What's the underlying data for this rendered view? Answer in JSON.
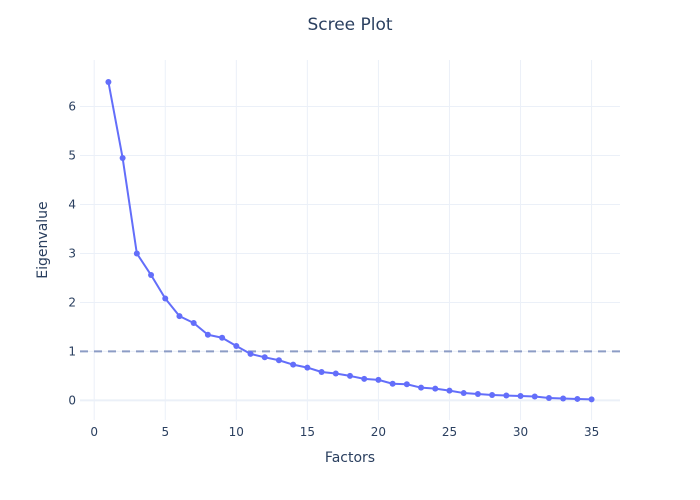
{
  "chart_data": {
    "type": "line",
    "title": "Scree Plot",
    "xlabel": "Factors",
    "ylabel": "Eigenvalue",
    "xlim": [
      -1,
      37
    ],
    "ylim": [
      -0.4,
      6.95
    ],
    "x_ticks": [
      0,
      5,
      10,
      15,
      20,
      25,
      30,
      35
    ],
    "y_ticks": [
      0,
      1,
      2,
      3,
      4,
      5,
      6
    ],
    "grid": true,
    "series": [
      {
        "x": [
          1,
          2,
          3,
          4,
          5,
          6,
          7,
          8,
          9,
          10,
          11,
          12,
          13,
          14,
          15,
          16,
          17,
          18,
          19,
          20,
          21,
          22,
          23,
          24,
          25,
          26,
          27,
          28,
          29,
          30,
          31,
          32,
          33,
          34,
          35
        ],
        "values": [
          6.5,
          4.95,
          3.0,
          2.56,
          2.08,
          1.72,
          1.58,
          1.34,
          1.28,
          1.11,
          0.95,
          0.88,
          0.82,
          0.73,
          0.67,
          0.58,
          0.55,
          0.5,
          0.44,
          0.42,
          0.34,
          0.33,
          0.26,
          0.24,
          0.2,
          0.15,
          0.13,
          0.11,
          0.1,
          0.09,
          0.08,
          0.05,
          0.04,
          0.03,
          0.02
        ],
        "color": "#636efa",
        "marker": "circle"
      }
    ],
    "reference_line": {
      "y": 1,
      "style": "dashed",
      "color": "#8c9cc5"
    }
  }
}
